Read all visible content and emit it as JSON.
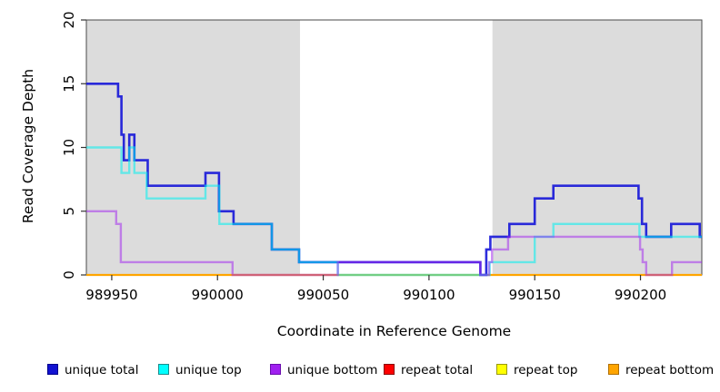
{
  "y_axis": {
    "label": "Read Coverage Depth",
    "ticks": [
      0,
      5,
      10,
      15,
      20
    ]
  },
  "x_axis": {
    "label": "Coordinate in Reference Genome",
    "ticks": [
      989950,
      990000,
      990050,
      990100,
      990150,
      990200
    ]
  },
  "legend": [
    {
      "label": "unique total",
      "fill": "#1212D1",
      "border": "#00008B"
    },
    {
      "label": "unique top",
      "fill": "#00FFFF",
      "border": "#1C8C8C"
    },
    {
      "label": "unique bottom",
      "fill": "#A020F0",
      "border": "#6A0DAD"
    },
    {
      "label": "repeat total",
      "fill": "#FF0000",
      "border": "#8B0000"
    },
    {
      "label": "repeat top",
      "fill": "#FFFF00",
      "border": "#99990F"
    },
    {
      "label": "repeat bottom",
      "fill": "#FFA500",
      "border": "#B06F00"
    }
  ],
  "chart_data": {
    "type": "line",
    "step": true,
    "xlim": [
      989938,
      990229
    ],
    "ylim": [
      0,
      20
    ],
    "grid": false,
    "shade_color": "#DCDCDC",
    "shaded_regions": [
      [
        989938,
        990039
      ],
      [
        990130,
        990229
      ]
    ],
    "axis_color": "#333333",
    "frame_color": "#4A4A4A",
    "series": [
      {
        "name": "repeat total",
        "key": "repeat-total",
        "color": "#E60000",
        "opacity": 1,
        "width": 2,
        "points": [
          [
            989938,
            0
          ]
        ]
      },
      {
        "name": "repeat top",
        "key": "repeat-top",
        "color": "#FFFF00",
        "opacity": 1,
        "width": 2,
        "points": [
          [
            989938,
            0
          ]
        ]
      },
      {
        "name": "repeat bottom",
        "key": "repeat-bottom",
        "color": "#FFA500",
        "opacity": 1,
        "width": 2.2,
        "points": [
          [
            989938,
            0
          ]
        ]
      },
      {
        "name": "unique total",
        "key": "unique-total",
        "color": "#1010D8",
        "opacity": 0.88,
        "width": 2.6,
        "points": [
          [
            989938,
            15
          ],
          [
            989953,
            14
          ],
          [
            989954.6,
            11
          ],
          [
            989955.7,
            9
          ],
          [
            989958.3,
            11
          ],
          [
            989960.7,
            9
          ],
          [
            989967,
            7
          ],
          [
            989994.3,
            8
          ],
          [
            990000.7,
            5
          ],
          [
            990007.6,
            4
          ],
          [
            990025.7,
            2
          ],
          [
            990038.6,
            1
          ],
          [
            990124.3,
            0
          ],
          [
            990127.1,
            2
          ],
          [
            990129,
            3
          ],
          [
            990138,
            4
          ],
          [
            990150,
            6
          ],
          [
            990158.8,
            7
          ],
          [
            990199.1,
            6
          ],
          [
            990200.7,
            4
          ],
          [
            990202.7,
            3
          ],
          [
            990214.5,
            4
          ],
          [
            990228,
            3
          ]
        ]
      },
      {
        "name": "unique top",
        "key": "unique-top",
        "color": "#00F0F0",
        "opacity": 0.55,
        "width": 2.4,
        "points": [
          [
            989938,
            10
          ],
          [
            989954.6,
            8
          ],
          [
            989958.3,
            10
          ],
          [
            989960.7,
            8
          ],
          [
            989966.5,
            6
          ],
          [
            989994.3,
            7
          ],
          [
            990000.9,
            4
          ],
          [
            990025.7,
            2
          ],
          [
            990038.6,
            1
          ],
          [
            990056.9,
            0
          ],
          [
            990128.7,
            1
          ],
          [
            990150,
            3
          ],
          [
            990158.8,
            4
          ],
          [
            990199.5,
            3
          ]
        ]
      },
      {
        "name": "unique bottom",
        "key": "unique-bottom",
        "color": "#A020F0",
        "opacity": 0.5,
        "width": 2.4,
        "points": [
          [
            989938,
            5
          ],
          [
            989952.1,
            4
          ],
          [
            989954.3,
            1
          ],
          [
            990007.1,
            0
          ],
          [
            990056.9,
            1
          ],
          [
            990124.3,
            0
          ],
          [
            990128.4,
            1
          ],
          [
            990129.8,
            2
          ],
          [
            990137.4,
            3
          ],
          [
            990199.8,
            2
          ],
          [
            990201,
            1
          ],
          [
            990202.7,
            0
          ],
          [
            990214.9,
            1
          ]
        ]
      }
    ]
  }
}
